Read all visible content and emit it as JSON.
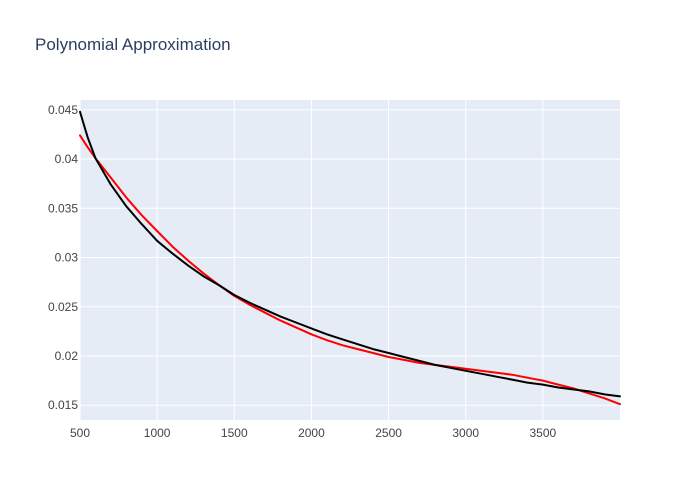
{
  "chart_data": {
    "type": "line",
    "title": "Polynomial Approximation",
    "xlabel": "",
    "ylabel": "",
    "xlim": [
      500,
      4000
    ],
    "ylim": [
      0.0135,
      0.046
    ],
    "x_ticks": [
      500,
      1000,
      1500,
      2000,
      2500,
      3000,
      3500
    ],
    "y_ticks": [
      0.015,
      0.02,
      0.025,
      0.03,
      0.035,
      0.04,
      0.045
    ],
    "y_tick_labels": [
      "0.015",
      "0.02",
      "0.025",
      "0.03",
      "0.035",
      "0.04",
      "0.045"
    ],
    "grid": true,
    "legend": "none",
    "colors": {
      "plot_bg": "#e5ecf6",
      "grid": "#ffffff",
      "text": "#444444",
      "title": "#2a3f5f"
    },
    "series": [
      {
        "color": "#ff0000",
        "x": [
          500,
          550,
          600,
          700,
          800,
          900,
          1000,
          1100,
          1200,
          1300,
          1400,
          1500,
          1600,
          1700,
          1800,
          1900,
          2000,
          2100,
          2200,
          2300,
          2400,
          2500,
          2600,
          2700,
          2800,
          2900,
          3000,
          3100,
          3200,
          3300,
          3400,
          3500,
          3600,
          3700,
          3800,
          3900,
          4000
        ],
        "y": [
          0.0424,
          0.0412,
          0.0401,
          0.0381,
          0.0361,
          0.0343,
          0.0327,
          0.0311,
          0.0297,
          0.0284,
          0.0272,
          0.0261,
          0.0252,
          0.0244,
          0.0236,
          0.0229,
          0.0222,
          0.0216,
          0.0211,
          0.0207,
          0.0203,
          0.0199,
          0.0196,
          0.0193,
          0.0191,
          0.0189,
          0.0187,
          0.0185,
          0.0183,
          0.0181,
          0.0178,
          0.0175,
          0.0171,
          0.0167,
          0.0162,
          0.0157,
          0.0151
        ]
      },
      {
        "color": "#000000",
        "x": [
          500,
          550,
          600,
          700,
          800,
          900,
          1000,
          1100,
          1200,
          1300,
          1400,
          1500,
          1600,
          1700,
          1800,
          1900,
          2000,
          2100,
          2200,
          2300,
          2400,
          2500,
          2600,
          2700,
          2800,
          2900,
          3000,
          3100,
          3200,
          3300,
          3400,
          3500,
          3600,
          3700,
          3800,
          3900,
          4000
        ],
        "y": [
          0.0448,
          0.0422,
          0.0401,
          0.0374,
          0.0352,
          0.0334,
          0.0317,
          0.0304,
          0.0292,
          0.0281,
          0.0272,
          0.0262,
          0.0254,
          0.0247,
          0.024,
          0.0234,
          0.0228,
          0.0222,
          0.0217,
          0.0212,
          0.0207,
          0.0203,
          0.0199,
          0.0195,
          0.0191,
          0.0188,
          0.0185,
          0.0182,
          0.0179,
          0.0176,
          0.0173,
          0.0171,
          0.0168,
          0.0166,
          0.0164,
          0.0161,
          0.0159
        ]
      }
    ]
  }
}
